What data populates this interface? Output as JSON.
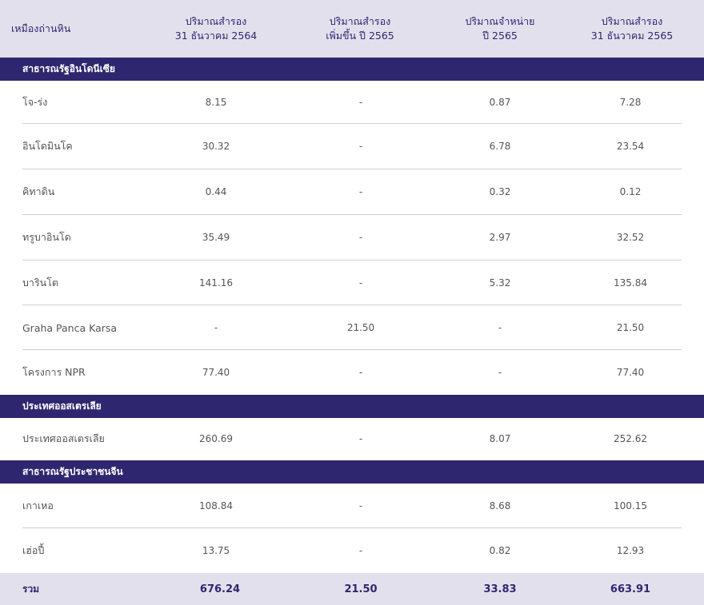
{
  "header": {
    "col0": "เหมืองถ่านหิน",
    "col1_line1": "ปริมาณสำรอง",
    "col1_line2": "31 ธันวาคม 2564",
    "col2_line1": "ปริมาณสำรอง",
    "col2_line2": "เพิ่มขึ้น ปี 2565",
    "col3_line1": "ปริมาณจำหน่าย",
    "col3_line2": "ปี 2565",
    "col4_line1": "ปริมาณสำรอง",
    "col4_line2": "31 ธันวาคม 2565"
  },
  "sections": [
    {
      "title": "สาธารณรัฐอินโดนีเซีย",
      "rows": [
        {
          "name": "โจ-ร่ง",
          "v1": "8.15",
          "v2": "-",
          "v3": "0.87",
          "v4": "7.28"
        },
        {
          "name": "อินโดมินโค",
          "v1": "30.32",
          "v2": "-",
          "v3": "6.78",
          "v4": "23.54"
        },
        {
          "name": "คิทาดิน",
          "v1": "0.44",
          "v2": "-",
          "v3": "0.32",
          "v4": "0.12"
        },
        {
          "name": "ทรูบาอินโด",
          "v1": "35.49",
          "v2": "-",
          "v3": "2.97",
          "v4": "32.52"
        },
        {
          "name": "บารินโต",
          "v1": "141.16",
          "v2": "-",
          "v3": "5.32",
          "v4": "135.84"
        },
        {
          "name": "Graha Panca Karsa",
          "v1": "-",
          "v2": "21.50",
          "v3": "-",
          "v4": "21.50"
        },
        {
          "name": "โครงการ NPR",
          "v1": "77.40",
          "v2": "-",
          "v3": "-",
          "v4": "77.40"
        }
      ]
    },
    {
      "title": "ประเทศออสเตรเลีย",
      "rows": [
        {
          "name": "ประเทศออสเตรเลีย",
          "v1": "260.69",
          "v2": "-",
          "v3": "8.07",
          "v4": "252.62"
        }
      ]
    },
    {
      "title": "สาธารณรัฐประชาชนจีน",
      "rows": [
        {
          "name": "เกาเหอ",
          "v1": "108.84",
          "v2": "-",
          "v3": "8.68",
          "v4": "100.15"
        },
        {
          "name": "เฮ่อปี้",
          "v1": "13.75",
          "v2": "-",
          "v3": "0.82",
          "v4": "12.93"
        }
      ]
    }
  ],
  "total": {
    "label": "รวม",
    "v1": "676.24",
    "v2": "21.50",
    "v3": "33.83",
    "v4": "663.91"
  },
  "colors": {
    "header_bg": "#e3e0ed",
    "section_bg": "#2f2670",
    "accent_text": "#2f2670"
  }
}
